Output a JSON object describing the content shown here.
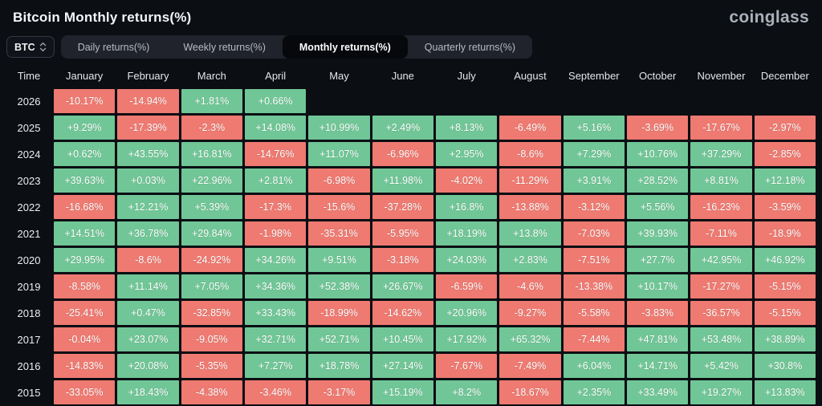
{
  "page": {
    "title": "Bitcoin Monthly returns(%)",
    "logo": "coinglass"
  },
  "controls": {
    "coin_selector": {
      "value": "BTC",
      "icon": "chevrons-up-down-icon"
    },
    "tabs": [
      {
        "id": "daily",
        "label": "Daily returns(%)",
        "active": false
      },
      {
        "id": "weekly",
        "label": "Weekly returns(%)",
        "active": false
      },
      {
        "id": "monthly",
        "label": "Monthly returns(%)",
        "active": true
      },
      {
        "id": "quarterly",
        "label": "Quarterly returns(%)",
        "active": false
      }
    ]
  },
  "chart_data": {
    "type": "heatmap",
    "title": "Bitcoin Monthly returns(%)",
    "legend_position": "none",
    "colors": {
      "positive": "#70c696",
      "negative": "#ee7a71"
    },
    "columns": [
      "Time",
      "January",
      "February",
      "March",
      "April",
      "May",
      "June",
      "July",
      "August",
      "September",
      "October",
      "November",
      "December"
    ],
    "rows": [
      {
        "year": "2026",
        "values": [
          "-10.17%",
          "-14.94%",
          "+1.81%",
          "+0.66%",
          "",
          "",
          "",
          "",
          "",
          "",
          "",
          ""
        ]
      },
      {
        "year": "2025",
        "values": [
          "+9.29%",
          "-17.39%",
          "-2.3%",
          "+14.08%",
          "+10.99%",
          "+2.49%",
          "+8.13%",
          "-6.49%",
          "+5.16%",
          "-3.69%",
          "-17.67%",
          "-2.97%"
        ]
      },
      {
        "year": "2024",
        "values": [
          "+0.62%",
          "+43.55%",
          "+16.81%",
          "-14.76%",
          "+11.07%",
          "-6.96%",
          "+2.95%",
          "-8.6%",
          "+7.29%",
          "+10.76%",
          "+37.29%",
          "-2.85%"
        ]
      },
      {
        "year": "2023",
        "values": [
          "+39.63%",
          "+0.03%",
          "+22.96%",
          "+2.81%",
          "-6.98%",
          "+11.98%",
          "-4.02%",
          "-11.29%",
          "+3.91%",
          "+28.52%",
          "+8.81%",
          "+12.18%"
        ]
      },
      {
        "year": "2022",
        "values": [
          "-16.68%",
          "+12.21%",
          "+5.39%",
          "-17.3%",
          "-15.6%",
          "-37.28%",
          "+16.8%",
          "-13.88%",
          "-3.12%",
          "+5.56%",
          "-16.23%",
          "-3.59%"
        ]
      },
      {
        "year": "2021",
        "values": [
          "+14.51%",
          "+36.78%",
          "+29.84%",
          "-1.98%",
          "-35.31%",
          "-5.95%",
          "+18.19%",
          "+13.8%",
          "-7.03%",
          "+39.93%",
          "-7.11%",
          "-18.9%"
        ]
      },
      {
        "year": "2020",
        "values": [
          "+29.95%",
          "-8.6%",
          "-24.92%",
          "+34.26%",
          "+9.51%",
          "-3.18%",
          "+24.03%",
          "+2.83%",
          "-7.51%",
          "+27.7%",
          "+42.95%",
          "+46.92%"
        ]
      },
      {
        "year": "2019",
        "values": [
          "-8.58%",
          "+11.14%",
          "+7.05%",
          "+34.36%",
          "+52.38%",
          "+26.67%",
          "-6.59%",
          "-4.6%",
          "-13.38%",
          "+10.17%",
          "-17.27%",
          "-5.15%"
        ]
      },
      {
        "year": "2018",
        "values": [
          "-25.41%",
          "+0.47%",
          "-32.85%",
          "+33.43%",
          "-18.99%",
          "-14.62%",
          "+20.96%",
          "-9.27%",
          "-5.58%",
          "-3.83%",
          "-36.57%",
          "-5.15%"
        ]
      },
      {
        "year": "2017",
        "values": [
          "-0.04%",
          "+23.07%",
          "-9.05%",
          "+32.71%",
          "+52.71%",
          "+10.45%",
          "+17.92%",
          "+65.32%",
          "-7.44%",
          "+47.81%",
          "+53.48%",
          "+38.89%"
        ]
      },
      {
        "year": "2016",
        "values": [
          "-14.83%",
          "+20.08%",
          "-5.35%",
          "+7.27%",
          "+18.78%",
          "+27.14%",
          "-7.67%",
          "-7.49%",
          "+6.04%",
          "+14.71%",
          "+5.42%",
          "+30.8%"
        ]
      },
      {
        "year": "2015",
        "values": [
          "-33.05%",
          "+18.43%",
          "-4.38%",
          "-3.46%",
          "-3.17%",
          "+15.19%",
          "+8.2%",
          "-18.67%",
          "+2.35%",
          "+33.49%",
          "+19.27%",
          "+13.83%"
        ]
      }
    ]
  }
}
